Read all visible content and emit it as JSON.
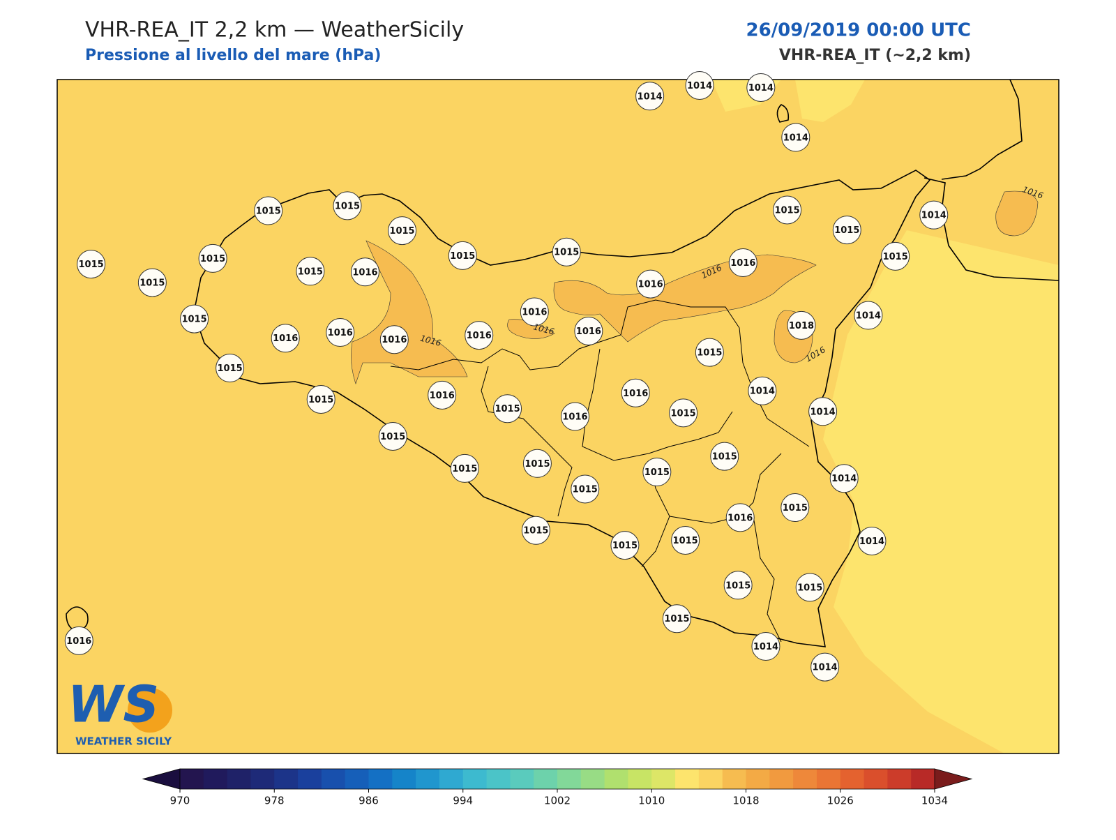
{
  "header": {
    "title": "VHR-REA_IT 2,2 km — WeatherSicily",
    "subtitle": "Pressione al livello del mare (hPa)",
    "datetime": "26/09/2019 00:00 UTC",
    "model": "VHR-REA_IT (~2,2 km)"
  },
  "stations": [
    1014,
    1014,
    1014,
    1014,
    1015,
    1015,
    1015,
    1015,
    1015,
    1015,
    1015,
    1016,
    1015,
    1015,
    1015,
    1015,
    1014,
    1015,
    1016,
    1016,
    1016,
    1015,
    1016,
    1016,
    1016,
    1016,
    1016,
    1014,
    1018,
    1015,
    1015,
    1015,
    1016,
    1016,
    1014,
    1015,
    1016,
    1015,
    1014,
    1015,
    1015,
    1015,
    1015,
    1015,
    1014,
    1015,
    1015,
    1016,
    1015,
    1015,
    1015,
    1014,
    1015,
    1015,
    1015,
    1014,
    1014,
    1016
  ],
  "contour_labels": [
    1016,
    1016,
    1016,
    1016,
    1016
  ],
  "logo": {
    "text": "WS",
    "caption": "WEATHER SICILY"
  },
  "colorbar": {
    "lim": [
      970,
      1034
    ],
    "ticks": [
      970,
      978,
      986,
      994,
      1002,
      1010,
      1018,
      1026,
      1034
    ],
    "colors": [
      "#23154f",
      "#201a5c",
      "#1f2268",
      "#1e2a78",
      "#1c3489",
      "#1a409d",
      "#1850ad",
      "#165fb9",
      "#1470c4",
      "#1584c9",
      "#2096ce",
      "#2fa9d1",
      "#3dbacf",
      "#4bc4c8",
      "#5acbbd",
      "#6dd2ab",
      "#82d899",
      "#98dc85",
      "#b0e06e",
      "#c8e465",
      "#dde667",
      "#fde46d",
      "#fbd462",
      "#f6bc50",
      "#f3aa45",
      "#f19a3f",
      "#ee883a",
      "#ea7534",
      "#e4622f",
      "#da4f2c",
      "#cc3c2a",
      "#b82a27"
    ],
    "under": "#1a0e3f",
    "over": "#7a1c1c"
  }
}
